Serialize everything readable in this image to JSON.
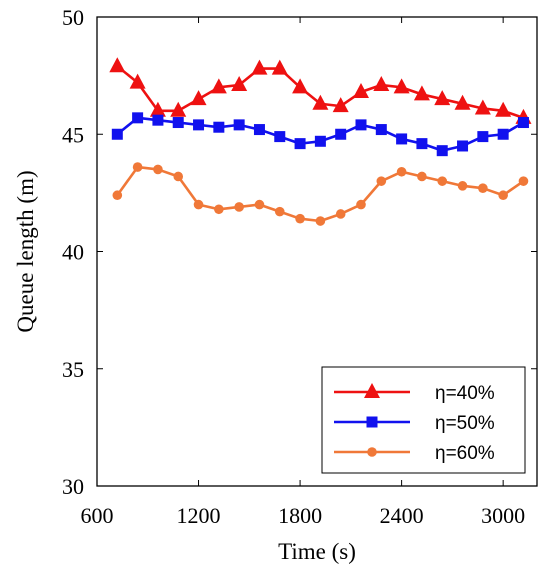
{
  "chart_data": {
    "type": "line",
    "xlabel": "Time (s)",
    "ylabel": "Queue length (m)",
    "xlim": [
      600,
      3200
    ],
    "ylim": [
      30,
      50
    ],
    "xticks": [
      600,
      1200,
      1800,
      2400,
      3000
    ],
    "yticks": [
      30,
      35,
      40,
      45,
      50
    ],
    "grid": false,
    "legend_position": "bottom-right",
    "x": [
      720,
      840,
      960,
      1080,
      1200,
      1320,
      1440,
      1560,
      1680,
      1800,
      1920,
      2040,
      2160,
      2280,
      2400,
      2520,
      2640,
      2760,
      2880,
      3000,
      3120
    ],
    "series": [
      {
        "name": "η=40%",
        "color": "#ee1111",
        "marker": "triangle",
        "values": [
          47.9,
          47.2,
          46.0,
          46.0,
          46.5,
          47.0,
          47.1,
          47.8,
          47.8,
          47.0,
          46.3,
          46.2,
          46.8,
          47.1,
          47.0,
          46.7,
          46.5,
          46.3,
          46.1,
          46.0,
          45.7
        ]
      },
      {
        "name": "η=50%",
        "color": "#1111ee",
        "marker": "square",
        "values": [
          45.0,
          45.7,
          45.6,
          45.5,
          45.4,
          45.3,
          45.4,
          45.2,
          44.9,
          44.6,
          44.7,
          45.0,
          45.4,
          45.2,
          44.8,
          44.6,
          44.3,
          44.5,
          44.9,
          45.0,
          45.5
        ]
      },
      {
        "name": "η=60%",
        "color": "#f07838",
        "marker": "circle",
        "values": [
          42.4,
          43.6,
          43.5,
          43.2,
          42.0,
          41.8,
          41.9,
          42.0,
          41.7,
          41.4,
          41.3,
          41.6,
          42.0,
          43.0,
          43.4,
          43.2,
          43.0,
          42.8,
          42.7,
          42.4,
          43.0
        ]
      }
    ]
  }
}
